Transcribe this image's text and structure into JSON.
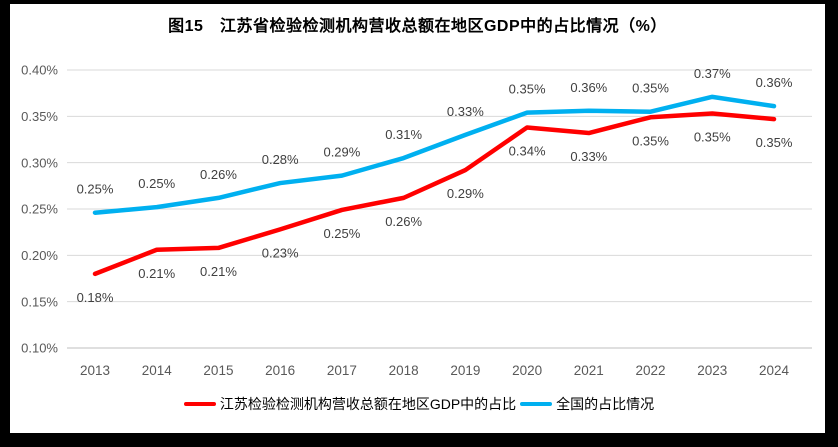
{
  "title": "图15　江苏省检验检测机构营收总额在地区GDP中的占比情况（%）",
  "colors": {
    "frame_background": "#000000",
    "chart_background": "#ffffff",
    "gridline": "#D9D9D9",
    "axis_line": "#BFBFBF",
    "axis_label": "#595959",
    "data_label": "#404040",
    "title_text": "#000000",
    "legend_text": "#000000"
  },
  "chart_data": {
    "type": "line",
    "categories": [
      "2013",
      "2014",
      "2015",
      "2016",
      "2017",
      "2018",
      "2019",
      "2020",
      "2021",
      "2022",
      "2023",
      "2024"
    ],
    "series": [
      {
        "name": "江苏检验检测机构营收总额在地区GDP中的占比",
        "color": "#FF0000",
        "values": [
          0.18,
          0.21,
          0.21,
          0.23,
          0.25,
          0.26,
          0.29,
          0.34,
          0.33,
          0.35,
          0.35,
          0.35
        ],
        "labels": [
          "0.18%",
          "0.21%",
          "0.21%",
          "0.23%",
          "0.25%",
          "0.26%",
          "0.29%",
          "0.34%",
          "0.33%",
          "0.35%",
          "0.35%",
          "0.35%"
        ],
        "plot_values": [
          0.18,
          0.206,
          0.208,
          0.228,
          0.249,
          0.262,
          0.292,
          0.338,
          0.332,
          0.349,
          0.353,
          0.347
        ],
        "label_position": "below"
      },
      {
        "name": "全国的占比情况",
        "color": "#00B0F0",
        "values": [
          0.25,
          0.25,
          0.26,
          0.28,
          0.29,
          0.31,
          0.33,
          0.35,
          0.36,
          0.35,
          0.37,
          0.36
        ],
        "labels": [
          "0.25%",
          "0.25%",
          "0.26%",
          "0.28%",
          "0.29%",
          "0.31%",
          "0.33%",
          "0.35%",
          "0.36%",
          "0.35%",
          "0.37%",
          "0.36%"
        ],
        "plot_values": [
          0.246,
          0.252,
          0.262,
          0.278,
          0.286,
          0.305,
          0.33,
          0.354,
          0.356,
          0.355,
          0.371,
          0.361
        ],
        "label_position": "above"
      }
    ],
    "xlabel": "",
    "ylabel": "",
    "ylim": [
      0.1,
      0.4
    ],
    "y_ticks": [
      "0.40%",
      "0.35%",
      "0.30%",
      "0.25%",
      "0.20%",
      "0.15%",
      "0.10%"
    ],
    "y_tick_values": [
      0.4,
      0.35,
      0.3,
      0.25,
      0.2,
      0.15,
      0.1
    ],
    "grid": true,
    "legend_position": "bottom"
  }
}
